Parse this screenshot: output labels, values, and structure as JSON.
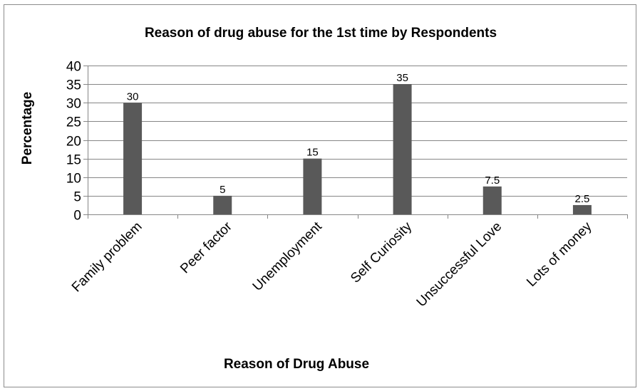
{
  "chart_data": {
    "type": "bar",
    "title": "Reason of drug abuse for the 1st time by Respondents",
    "xlabel": "Reason of Drug Abuse",
    "ylabel": "Percentage",
    "categories": [
      "Family problem",
      "Peer factor",
      "Unemployment",
      "Self Curiosity",
      "Unsuccessful Love",
      "Lots of money"
    ],
    "values": [
      30,
      5,
      15,
      35,
      7.5,
      2.5
    ],
    "data_labels": [
      "30",
      "5",
      "15",
      "35",
      "7.5",
      "2.5"
    ],
    "yticks": [
      "0",
      "5",
      "10",
      "15",
      "20",
      "25",
      "30",
      "35",
      "40"
    ],
    "ylim": [
      0,
      40
    ],
    "grid": true,
    "legend": "none",
    "bar_color": "#595959",
    "grid_color": "#868686"
  }
}
